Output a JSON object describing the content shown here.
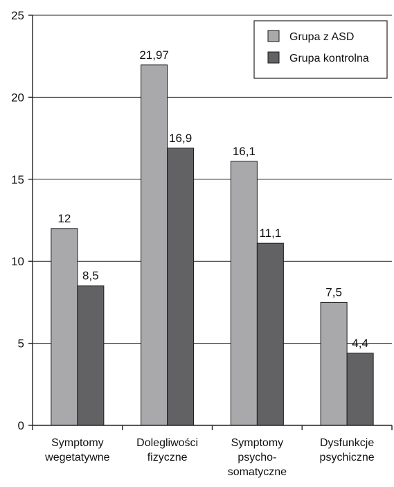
{
  "chart_data": {
    "type": "bar",
    "title": "",
    "xlabel": "",
    "ylabel": "",
    "ylim": [
      0,
      25
    ],
    "yticks": [
      0,
      5,
      10,
      15,
      20,
      25
    ],
    "grid": true,
    "legend_position": "top-right",
    "categories": [
      [
        "Symptomy",
        "wegetatywne"
      ],
      [
        "Dolegliwości",
        "fizyczne"
      ],
      [
        "Symptomy",
        "psycho-",
        "somatyczne"
      ],
      [
        "Dysfunkcje",
        "psychiczne"
      ]
    ],
    "series": [
      {
        "name": "Grupa z ASD",
        "color": "#a9a9ab",
        "values": [
          12,
          21.97,
          16.1,
          7.5
        ],
        "labels": [
          "12",
          "21,97",
          "16,1",
          "7,5"
        ]
      },
      {
        "name": "Grupa kontrolna",
        "color": "#626265",
        "values": [
          8.5,
          16.9,
          11.1,
          4.4
        ],
        "labels": [
          "8,5",
          "16,9",
          "11,1",
          "4,4"
        ]
      }
    ]
  }
}
